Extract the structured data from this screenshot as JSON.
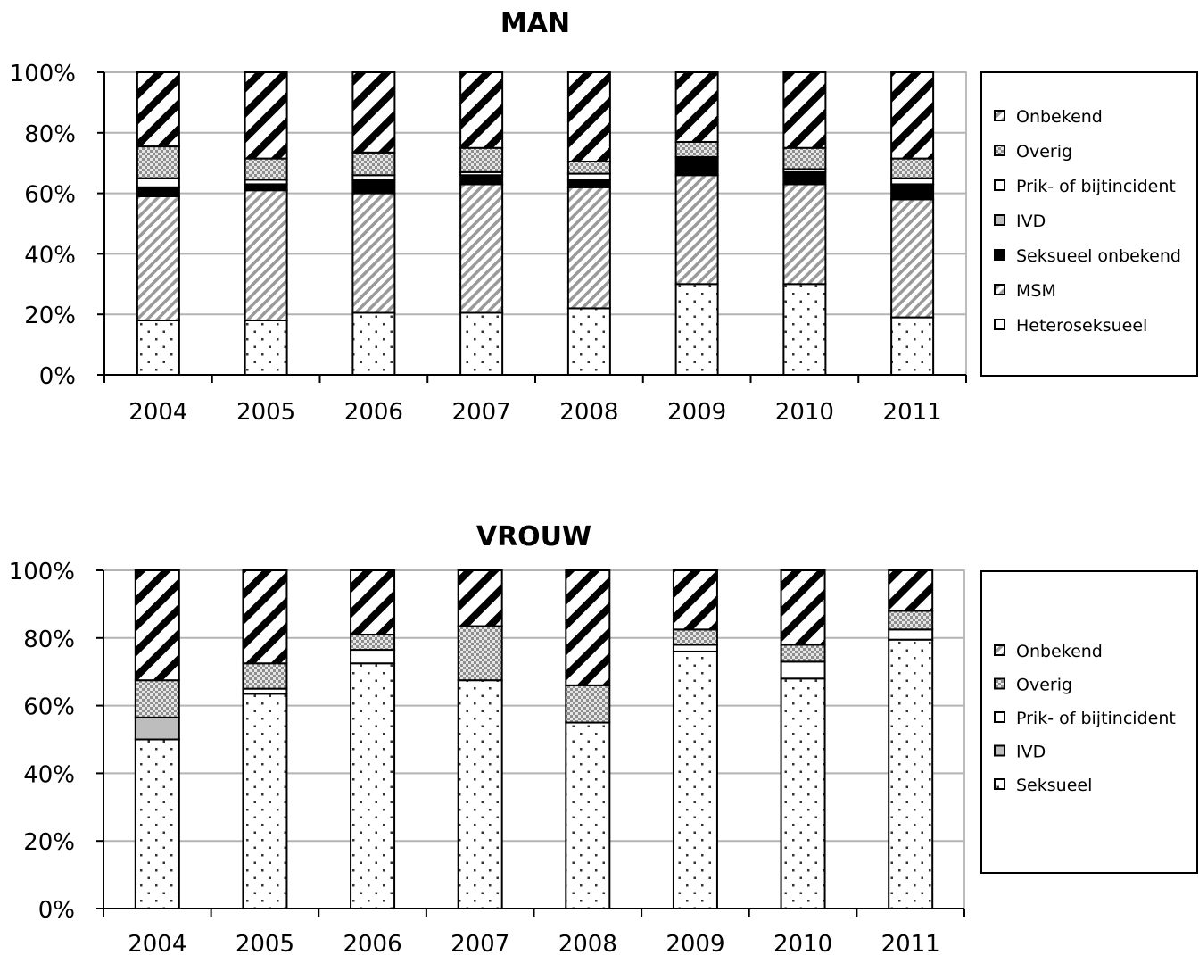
{
  "chart_data": [
    {
      "type": "bar",
      "stacked": true,
      "title": "MAN",
      "categories": [
        "2004",
        "2005",
        "2006",
        "2007",
        "2008",
        "2009",
        "2010",
        "2011"
      ],
      "ylim": [
        0,
        100
      ],
      "yticks": [
        "0%",
        "20%",
        "40%",
        "60%",
        "80%",
        "100%"
      ],
      "grid": true,
      "legend_position": "right",
      "series": [
        {
          "name": "Heteroseksueel",
          "pattern": "dots",
          "values": [
            18,
            18,
            20.5,
            20.5,
            22,
            30,
            30,
            19
          ]
        },
        {
          "name": "MSM",
          "pattern": "hatch",
          "values": [
            41,
            43,
            39.5,
            42.5,
            40,
            36,
            33,
            39
          ]
        },
        {
          "name": "Seksueel onbekend",
          "pattern": "black",
          "values": [
            3,
            2,
            4.5,
            3,
            2.5,
            6,
            4,
            5
          ]
        },
        {
          "name": "IVD",
          "pattern": "gray",
          "values": [
            0,
            0,
            0,
            0,
            0,
            0,
            0,
            0
          ]
        },
        {
          "name": "Prik- of bijtincident",
          "pattern": "white",
          "values": [
            3,
            1.5,
            1.5,
            1,
            2,
            0,
            1,
            2
          ]
        },
        {
          "name": "Overig",
          "pattern": "check",
          "values": [
            10.5,
            7,
            7.5,
            8,
            4,
            5,
            7,
            6.5
          ]
        },
        {
          "name": "Onbekend",
          "pattern": "bigstripe",
          "values": [
            24.5,
            28.5,
            26.5,
            25,
            29.5,
            23,
            25,
            28.5
          ]
        }
      ],
      "legend_order": [
        "Onbekend",
        "Overig",
        "Prik- of bijtincident",
        "IVD",
        "Seksueel onbekend",
        "MSM",
        "Heteroseksueel"
      ]
    },
    {
      "type": "bar",
      "stacked": true,
      "title": "VROUW",
      "categories": [
        "2004",
        "2005",
        "2006",
        "2007",
        "2008",
        "2009",
        "2010",
        "2011"
      ],
      "ylim": [
        0,
        100
      ],
      "yticks": [
        "0%",
        "20%",
        "40%",
        "60%",
        "80%",
        "100%"
      ],
      "grid": true,
      "legend_position": "right",
      "series": [
        {
          "name": "Seksueel",
          "pattern": "dots",
          "values": [
            50,
            63.5,
            72.5,
            67.5,
            55,
            76,
            68,
            79.5
          ]
        },
        {
          "name": "IVD",
          "pattern": "gray",
          "values": [
            6.5,
            0,
            0,
            0,
            0,
            0,
            0,
            0
          ]
        },
        {
          "name": "Prik- of bijtincident",
          "pattern": "white",
          "values": [
            0,
            1.5,
            4,
            0,
            0,
            2,
            5,
            3
          ]
        },
        {
          "name": "Overig",
          "pattern": "check",
          "values": [
            11,
            7.5,
            4.5,
            16,
            11,
            4.5,
            5,
            5.5
          ]
        },
        {
          "name": "Onbekend",
          "pattern": "bigstripe",
          "values": [
            32.5,
            27.5,
            19,
            16.5,
            34,
            17.5,
            22,
            12
          ]
        }
      ],
      "legend_order": [
        "Onbekend",
        "Overig",
        "Prik- of bijtincident",
        "IVD",
        "Seksueel"
      ]
    }
  ]
}
